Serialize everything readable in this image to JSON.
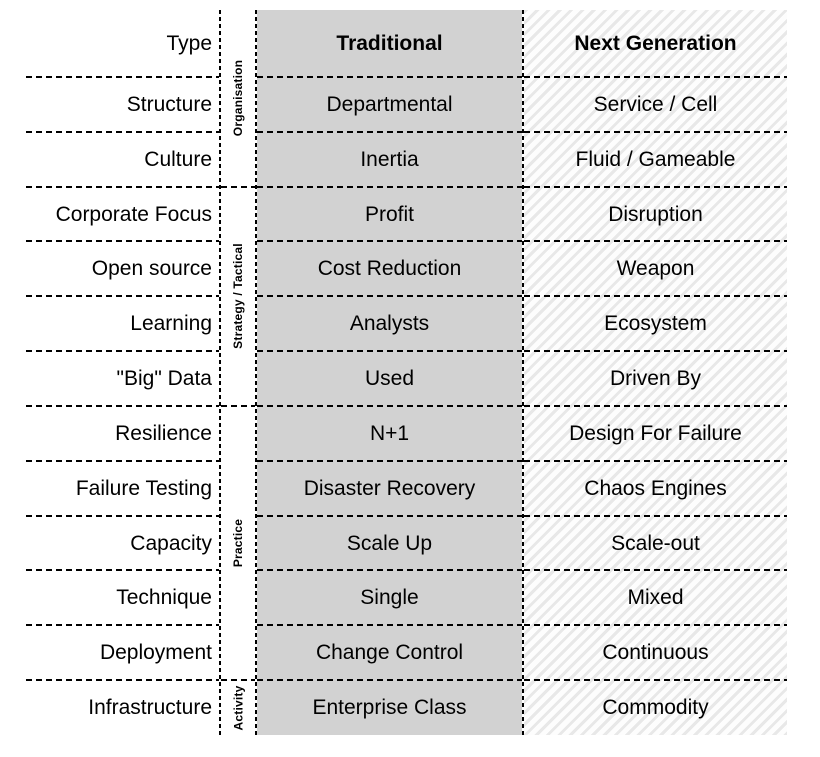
{
  "title": "Traditional vs Next Generation comparison table",
  "colors": {
    "traditional_fill": "#d2d2d2",
    "hatch_stripe": "#e8e8e8",
    "hatch_bg": "#fdfdfd",
    "line": "#000000",
    "text": "#000000"
  },
  "table": {
    "groups": [
      {
        "label": "Organisation",
        "row_span": 3
      },
      {
        "label": "Strategy / Tactical",
        "row_span": 4
      },
      {
        "label": "Practice",
        "row_span": 5
      },
      {
        "label": "Activity",
        "row_span": 1
      }
    ],
    "rows": [
      {
        "label": "Type",
        "traditional": "Traditional",
        "next": "Next Generation"
      },
      {
        "label": "Structure",
        "traditional": "Departmental",
        "next": "Service / Cell"
      },
      {
        "label": "Culture",
        "traditional": "Inertia",
        "next": "Fluid / Gameable"
      },
      {
        "label": "Corporate Focus",
        "traditional": "Profit",
        "next": "Disruption"
      },
      {
        "label": "Open source",
        "traditional": "Cost Reduction",
        "next": "Weapon"
      },
      {
        "label": "Learning",
        "traditional": "Analysts",
        "next": "Ecosystem"
      },
      {
        "label": "\"Big\" Data",
        "traditional": "Used",
        "next": "Driven By"
      },
      {
        "label": "Resilience",
        "traditional": "N+1",
        "next": "Design For Failure"
      },
      {
        "label": "Failure Testing",
        "traditional": "Disaster Recovery",
        "next": "Chaos Engines"
      },
      {
        "label": "Capacity",
        "traditional": "Scale Up",
        "next": "Scale-out"
      },
      {
        "label": "Technique",
        "traditional": "Single",
        "next": "Mixed"
      },
      {
        "label": "Deployment",
        "traditional": "Change Control",
        "next": "Continuous"
      },
      {
        "label": "Infrastructure",
        "traditional": "Enterprise Class",
        "next": "Commodity"
      }
    ]
  }
}
